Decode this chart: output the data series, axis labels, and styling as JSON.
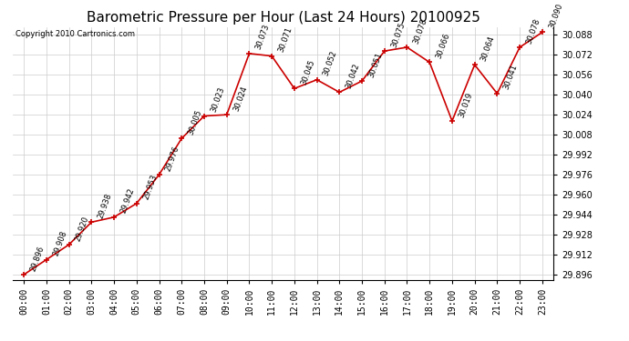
{
  "title": "Barometric Pressure per Hour (Last 24 Hours) 20100925",
  "copyright": "Copyright 2010 Cartronics.com",
  "hours": [
    "00:00",
    "01:00",
    "02:00",
    "03:00",
    "04:00",
    "05:00",
    "06:00",
    "07:00",
    "08:00",
    "09:00",
    "10:00",
    "11:00",
    "12:00",
    "13:00",
    "14:00",
    "15:00",
    "16:00",
    "17:00",
    "18:00",
    "19:00",
    "20:00",
    "21:00",
    "22:00",
    "23:00"
  ],
  "values": [
    29.896,
    29.908,
    29.92,
    29.938,
    29.942,
    29.953,
    29.976,
    30.005,
    30.023,
    30.024,
    30.073,
    30.071,
    30.045,
    30.052,
    30.042,
    30.051,
    30.075,
    30.078,
    30.066,
    30.019,
    30.064,
    30.041,
    30.078,
    30.09
  ],
  "line_color": "#cc0000",
  "marker_color": "#cc0000",
  "bg_color": "#ffffff",
  "grid_color": "#cccccc",
  "title_fontsize": 11,
  "copyright_fontsize": 6,
  "annotation_fontsize": 6,
  "tick_fontsize": 7,
  "ytick_step": 0.016,
  "ymin": 29.896,
  "ymax": 30.09
}
